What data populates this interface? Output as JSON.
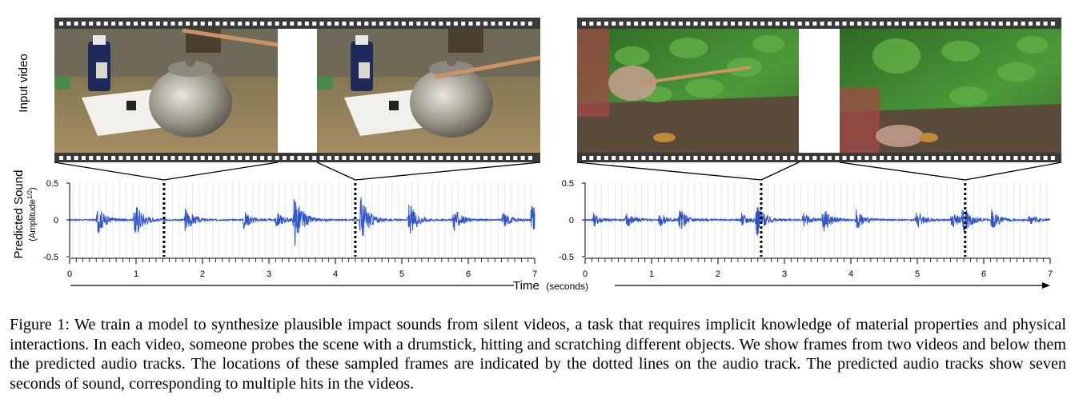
{
  "input_video_label": "Input video",
  "y_axis_title": "Predicted Sound",
  "y_axis_subtitle": "(Amplitude",
  "y_axis_sup": "1/2",
  "y_axis_close": ")",
  "time_label": "Time",
  "time_unit": "(seconds)",
  "frames": [
    {
      "scene": "teapot-on-desk-drumstick",
      "palette": {
        "bg": "#8a7a58",
        "wall": "#9a8e6e",
        "object": "#b8b4aa"
      }
    },
    {
      "scene": "teapot-on-desk-drumstick",
      "palette": {
        "bg": "#8a7a58",
        "wall": "#9a8e6e",
        "object": "#b8b4aa"
      }
    },
    {
      "scene": "foliage-drumstick-hit",
      "palette": {
        "bg": "#3f7a2e",
        "leaf": "#4d9a3a",
        "soil": "#5a4a3a"
      }
    },
    {
      "scene": "foliage-drumstick-hit-blurred",
      "palette": {
        "bg": "#3f7a2e",
        "leaf": "#4d9a3a",
        "soil": "#5a4a3a"
      }
    }
  ],
  "chart_data": [
    {
      "type": "line",
      "title": "",
      "xlabel": "Time (seconds)",
      "ylabel": "Predicted Sound (Amplitude^1/2)",
      "xlim": [
        0,
        7
      ],
      "ylim": [
        -0.5,
        0.5
      ],
      "xticks": [
        "0",
        "1",
        "2",
        "3",
        "4",
        "5",
        "6",
        "7"
      ],
      "yticks": [
        "0.5",
        "0",
        "-0.5"
      ],
      "series_color": "#2e55c9",
      "hits": [
        {
          "t": 0.42,
          "amp": 0.2
        },
        {
          "t": 0.98,
          "amp": 0.28
        },
        {
          "t": 1.74,
          "amp": 0.18
        },
        {
          "t": 2.62,
          "amp": 0.13
        },
        {
          "t": 3.1,
          "amp": 0.12
        },
        {
          "t": 3.38,
          "amp": 0.38
        },
        {
          "t": 4.38,
          "amp": 0.36
        },
        {
          "t": 5.1,
          "amp": 0.26
        },
        {
          "t": 5.78,
          "amp": 0.17
        },
        {
          "t": 6.52,
          "amp": 0.12
        },
        {
          "t": 6.95,
          "amp": 0.24
        }
      ],
      "frame_markers": [
        1.42,
        4.3
      ]
    },
    {
      "type": "line",
      "title": "",
      "xlabel": "Time (seconds)",
      "ylabel": "",
      "xlim": [
        0,
        7
      ],
      "ylim": [
        -0.5,
        0.5
      ],
      "xticks": [
        "0",
        "1",
        "2",
        "3",
        "4",
        "5",
        "6",
        "7"
      ],
      "yticks": [
        "0.5",
        "0",
        "-0.5"
      ],
      "series_color": "#2e55c9",
      "hits": [
        {
          "t": 0.12,
          "amp": 0.1
        },
        {
          "t": 0.62,
          "amp": 0.12
        },
        {
          "t": 1.12,
          "amp": 0.1
        },
        {
          "t": 1.42,
          "amp": 0.16
        },
        {
          "t": 2.35,
          "amp": 0.1
        },
        {
          "t": 2.58,
          "amp": 0.24
        },
        {
          "t": 3.28,
          "amp": 0.1
        },
        {
          "t": 3.58,
          "amp": 0.18
        },
        {
          "t": 4.08,
          "amp": 0.14
        },
        {
          "t": 4.98,
          "amp": 0.14
        },
        {
          "t": 5.52,
          "amp": 0.12
        },
        {
          "t": 5.68,
          "amp": 0.2
        },
        {
          "t": 6.12,
          "amp": 0.14
        },
        {
          "t": 6.68,
          "amp": 0.08
        }
      ],
      "frame_markers": [
        2.65,
        5.72
      ]
    }
  ],
  "caption": {
    "label": "Figure 1:",
    "text": "We train a model to synthesize plausible impact sounds from silent videos, a task that requires implicit knowledge of material properties and physical interactions. In each video, someone probes the scene with a drumstick, hitting and scratching different objects. We show frames from two videos and below them the predicted audio tracks. The locations of these sampled frames are indicated by the dotted lines on the audio track. The predicted audio tracks show seven seconds of sound, corresponding to multiple hits in the videos."
  }
}
